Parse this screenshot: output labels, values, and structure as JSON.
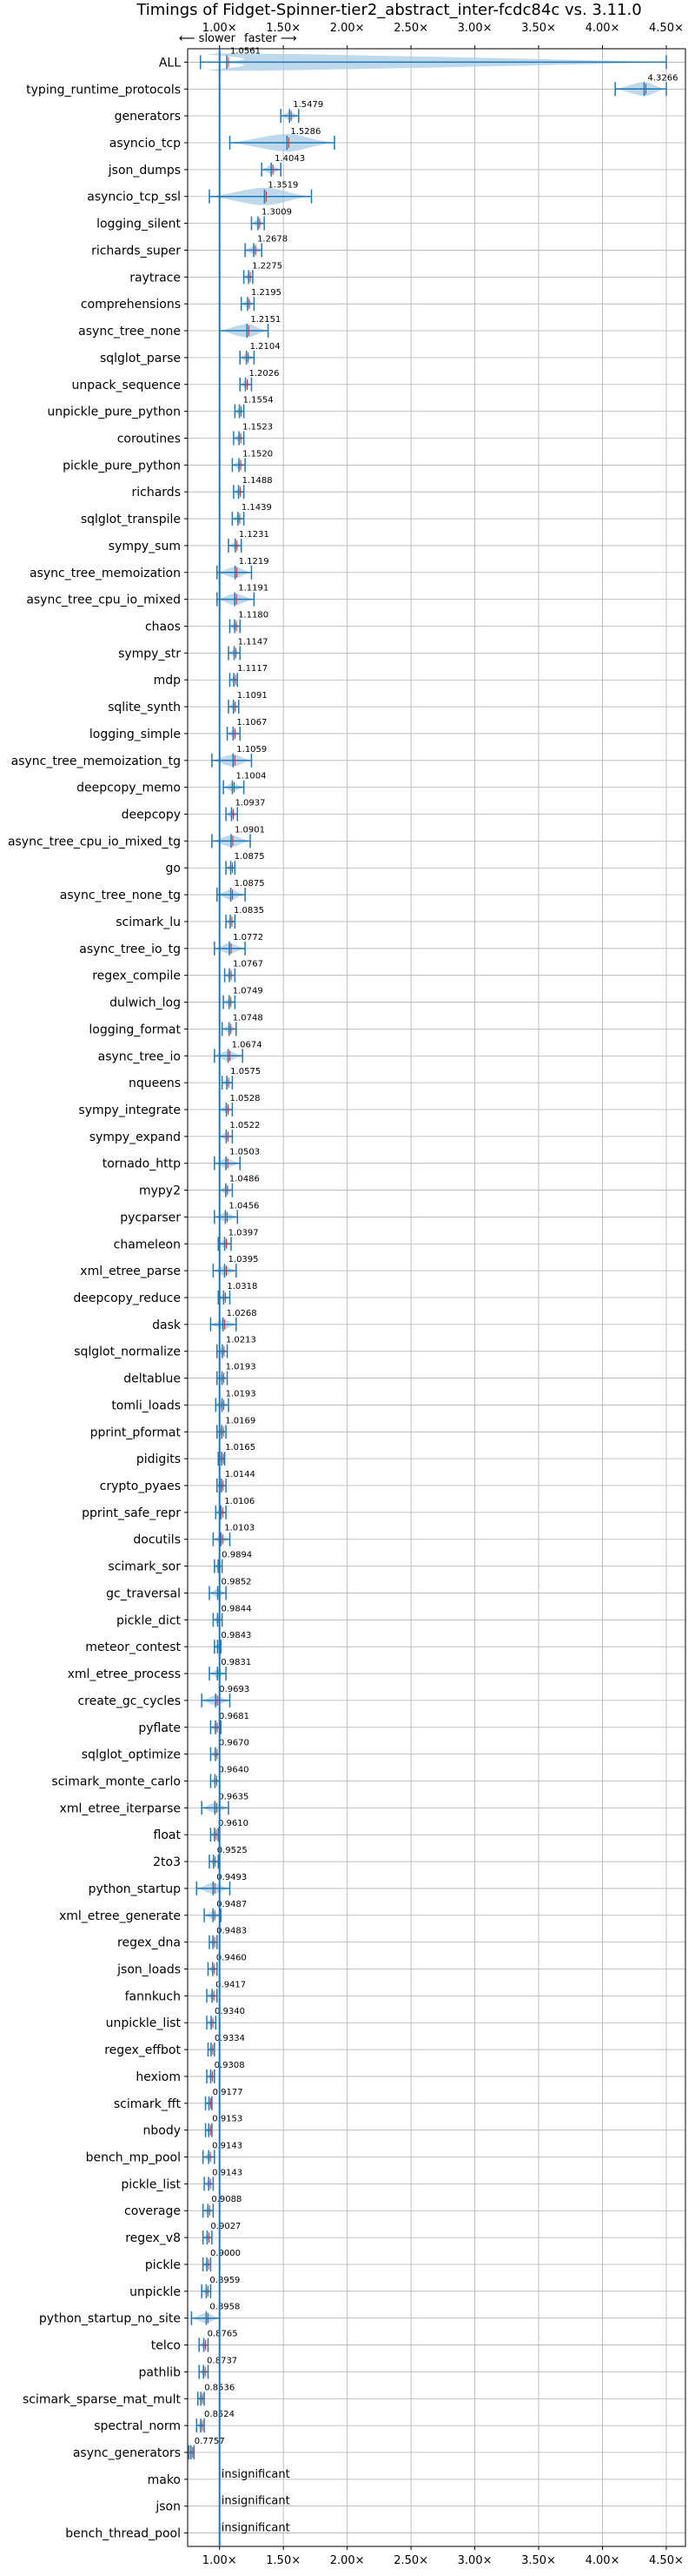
{
  "chart_data": {
    "type": "violin",
    "title": "Timings of Fidget-Spinner-tier2_abstract_inter-fcdc84c vs. 3.11.0",
    "slower_label": "⟵ slower",
    "faster_label": "faster ⟶",
    "insignificant_label": "insignificant",
    "xlim": [
      0.75,
      4.65
    ],
    "x_ticks": [
      1.0,
      1.5,
      2.0,
      2.5,
      3.0,
      3.5,
      4.0,
      4.5
    ],
    "x_tick_labels": [
      "1.00×",
      "1.50×",
      "2.00×",
      "2.50×",
      "3.00×",
      "3.50×",
      "4.00×",
      "4.50×"
    ],
    "reference_line": 1.0,
    "grid": true,
    "colors": {
      "violin": "#a8cbe6",
      "median": "#1f77b4",
      "mean": "#d62728",
      "reference": "#1f77b4"
    },
    "rows": [
      {
        "name": "ALL",
        "value": 1.0561,
        "low": 0.85,
        "high": 4.5
      },
      {
        "name": "typing_runtime_protocols",
        "value": 4.3266,
        "low": 4.1,
        "high": 4.5
      },
      {
        "name": "generators",
        "value": 1.5479,
        "low": 1.48,
        "high": 1.62
      },
      {
        "name": "asyncio_tcp",
        "value": 1.5286,
        "low": 1.08,
        "high": 1.9
      },
      {
        "name": "json_dumps",
        "value": 1.4043,
        "low": 1.33,
        "high": 1.48
      },
      {
        "name": "asyncio_tcp_ssl",
        "value": 1.3519,
        "low": 0.92,
        "high": 1.72
      },
      {
        "name": "logging_silent",
        "value": 1.3009,
        "low": 1.25,
        "high": 1.35
      },
      {
        "name": "richards_super",
        "value": 1.2678,
        "low": 1.2,
        "high": 1.33
      },
      {
        "name": "raytrace",
        "value": 1.2275,
        "low": 1.19,
        "high": 1.26
      },
      {
        "name": "comprehensions",
        "value": 1.2195,
        "low": 1.17,
        "high": 1.27
      },
      {
        "name": "async_tree_none",
        "value": 1.2151,
        "low": 1.0,
        "high": 1.38
      },
      {
        "name": "sqlglot_parse",
        "value": 1.2104,
        "low": 1.16,
        "high": 1.27
      },
      {
        "name": "unpack_sequence",
        "value": 1.2026,
        "low": 1.16,
        "high": 1.25
      },
      {
        "name": "unpickle_pure_python",
        "value": 1.1554,
        "low": 1.12,
        "high": 1.19
      },
      {
        "name": "coroutines",
        "value": 1.1523,
        "low": 1.11,
        "high": 1.19
      },
      {
        "name": "pickle_pure_python",
        "value": 1.152,
        "low": 1.1,
        "high": 1.2
      },
      {
        "name": "richards",
        "value": 1.1488,
        "low": 1.11,
        "high": 1.19
      },
      {
        "name": "sqlglot_transpile",
        "value": 1.1439,
        "low": 1.1,
        "high": 1.19
      },
      {
        "name": "sympy_sum",
        "value": 1.1231,
        "low": 1.07,
        "high": 1.17
      },
      {
        "name": "async_tree_memoization",
        "value": 1.1219,
        "low": 0.98,
        "high": 1.25
      },
      {
        "name": "async_tree_cpu_io_mixed",
        "value": 1.1191,
        "low": 0.98,
        "high": 1.27
      },
      {
        "name": "chaos",
        "value": 1.118,
        "low": 1.08,
        "high": 1.16
      },
      {
        "name": "sympy_str",
        "value": 1.1147,
        "low": 1.07,
        "high": 1.16
      },
      {
        "name": "mdp",
        "value": 1.1117,
        "low": 1.08,
        "high": 1.14
      },
      {
        "name": "sqlite_synth",
        "value": 1.1091,
        "low": 1.07,
        "high": 1.15
      },
      {
        "name": "logging_simple",
        "value": 1.1067,
        "low": 1.06,
        "high": 1.16
      },
      {
        "name": "async_tree_memoization_tg",
        "value": 1.1059,
        "low": 0.94,
        "high": 1.25
      },
      {
        "name": "deepcopy_memo",
        "value": 1.1004,
        "low": 1.03,
        "high": 1.19
      },
      {
        "name": "deepcopy",
        "value": 1.0937,
        "low": 1.05,
        "high": 1.14
      },
      {
        "name": "async_tree_cpu_io_mixed_tg",
        "value": 1.0901,
        "low": 0.94,
        "high": 1.24
      },
      {
        "name": "go",
        "value": 1.0875,
        "low": 1.05,
        "high": 1.12
      },
      {
        "name": "async_tree_none_tg",
        "value": 1.0875,
        "low": 0.98,
        "high": 1.2
      },
      {
        "name": "scimark_lu",
        "value": 1.0835,
        "low": 1.05,
        "high": 1.12
      },
      {
        "name": "async_tree_io_tg",
        "value": 1.0772,
        "low": 0.96,
        "high": 1.2
      },
      {
        "name": "regex_compile",
        "value": 1.0767,
        "low": 1.04,
        "high": 1.12
      },
      {
        "name": "dulwich_log",
        "value": 1.0749,
        "low": 1.03,
        "high": 1.12
      },
      {
        "name": "logging_format",
        "value": 1.0748,
        "low": 1.02,
        "high": 1.13
      },
      {
        "name": "async_tree_io",
        "value": 1.0674,
        "low": 0.96,
        "high": 1.18
      },
      {
        "name": "nqueens",
        "value": 1.0575,
        "low": 1.02,
        "high": 1.1
      },
      {
        "name": "sympy_integrate",
        "value": 1.0528,
        "low": 1.0,
        "high": 1.1
      },
      {
        "name": "sympy_expand",
        "value": 1.0522,
        "low": 1.0,
        "high": 1.1
      },
      {
        "name": "tornado_http",
        "value": 1.0503,
        "low": 0.96,
        "high": 1.16
      },
      {
        "name": "mypy2",
        "value": 1.0486,
        "low": 1.0,
        "high": 1.1
      },
      {
        "name": "pycparser",
        "value": 1.0456,
        "low": 0.96,
        "high": 1.14
      },
      {
        "name": "chameleon",
        "value": 1.0397,
        "low": 0.99,
        "high": 1.09
      },
      {
        "name": "xml_etree_parse",
        "value": 1.0395,
        "low": 0.95,
        "high": 1.13
      },
      {
        "name": "deepcopy_reduce",
        "value": 1.0318,
        "low": 0.99,
        "high": 1.08
      },
      {
        "name": "dask",
        "value": 1.0268,
        "low": 0.93,
        "high": 1.13
      },
      {
        "name": "sqlglot_normalize",
        "value": 1.0213,
        "low": 0.98,
        "high": 1.06
      },
      {
        "name": "deltablue",
        "value": 1.0193,
        "low": 0.98,
        "high": 1.06
      },
      {
        "name": "tomli_loads",
        "value": 1.0193,
        "low": 0.97,
        "high": 1.07
      },
      {
        "name": "pprint_pformat",
        "value": 1.0169,
        "low": 0.98,
        "high": 1.05
      },
      {
        "name": "pidigits",
        "value": 1.0165,
        "low": 0.99,
        "high": 1.04
      },
      {
        "name": "crypto_pyaes",
        "value": 1.0144,
        "low": 0.98,
        "high": 1.05
      },
      {
        "name": "pprint_safe_repr",
        "value": 1.0106,
        "low": 0.97,
        "high": 1.05
      },
      {
        "name": "docutils",
        "value": 1.0103,
        "low": 0.95,
        "high": 1.08
      },
      {
        "name": "scimark_sor",
        "value": 0.9894,
        "low": 0.96,
        "high": 1.02
      },
      {
        "name": "gc_traversal",
        "value": 0.9852,
        "low": 0.92,
        "high": 1.05
      },
      {
        "name": "pickle_dict",
        "value": 0.9844,
        "low": 0.95,
        "high": 1.02
      },
      {
        "name": "meteor_contest",
        "value": 0.9843,
        "low": 0.96,
        "high": 1.01
      },
      {
        "name": "xml_etree_process",
        "value": 0.9831,
        "low": 0.92,
        "high": 1.05
      },
      {
        "name": "create_gc_cycles",
        "value": 0.9693,
        "low": 0.86,
        "high": 1.08
      },
      {
        "name": "pyflate",
        "value": 0.9681,
        "low": 0.93,
        "high": 1.01
      },
      {
        "name": "sqlglot_optimize",
        "value": 0.967,
        "low": 0.93,
        "high": 1.0
      },
      {
        "name": "scimark_monte_carlo",
        "value": 0.964,
        "low": 0.93,
        "high": 1.0
      },
      {
        "name": "xml_etree_iterparse",
        "value": 0.9635,
        "low": 0.86,
        "high": 1.07
      },
      {
        "name": "float",
        "value": 0.961,
        "low": 0.93,
        "high": 0.99
      },
      {
        "name": "2to3",
        "value": 0.9525,
        "low": 0.92,
        "high": 0.99
      },
      {
        "name": "python_startup",
        "value": 0.9493,
        "low": 0.82,
        "high": 1.08
      },
      {
        "name": "xml_etree_generate",
        "value": 0.9487,
        "low": 0.88,
        "high": 1.01
      },
      {
        "name": "regex_dna",
        "value": 0.9483,
        "low": 0.92,
        "high": 0.98
      },
      {
        "name": "json_loads",
        "value": 0.946,
        "low": 0.91,
        "high": 0.98
      },
      {
        "name": "fannkuch",
        "value": 0.9417,
        "low": 0.9,
        "high": 0.98
      },
      {
        "name": "unpickle_list",
        "value": 0.934,
        "low": 0.9,
        "high": 0.97
      },
      {
        "name": "regex_effbot",
        "value": 0.9334,
        "low": 0.91,
        "high": 0.96
      },
      {
        "name": "hexiom",
        "value": 0.9308,
        "low": 0.9,
        "high": 0.96
      },
      {
        "name": "scimark_fft",
        "value": 0.9177,
        "low": 0.89,
        "high": 0.94
      },
      {
        "name": "nbody",
        "value": 0.9153,
        "low": 0.89,
        "high": 0.94
      },
      {
        "name": "bench_mp_pool",
        "value": 0.9143,
        "low": 0.87,
        "high": 0.96
      },
      {
        "name": "pickle_list",
        "value": 0.9143,
        "low": 0.88,
        "high": 0.95
      },
      {
        "name": "coverage",
        "value": 0.9088,
        "low": 0.87,
        "high": 0.95
      },
      {
        "name": "regex_v8",
        "value": 0.9027,
        "low": 0.87,
        "high": 0.94
      },
      {
        "name": "pickle",
        "value": 0.9,
        "low": 0.87,
        "high": 0.93
      },
      {
        "name": "unpickle",
        "value": 0.8959,
        "low": 0.86,
        "high": 0.93
      },
      {
        "name": "python_startup_no_site",
        "value": 0.8958,
        "low": 0.78,
        "high": 1.0
      },
      {
        "name": "telco",
        "value": 0.8765,
        "low": 0.84,
        "high": 0.91
      },
      {
        "name": "pathlib",
        "value": 0.8737,
        "low": 0.84,
        "high": 0.91
      },
      {
        "name": "scimark_sparse_mat_mult",
        "value": 0.8536,
        "low": 0.83,
        "high": 0.88
      },
      {
        "name": "spectral_norm",
        "value": 0.8524,
        "low": 0.82,
        "high": 0.88
      },
      {
        "name": "async_generators",
        "value": 0.7757,
        "low": 0.76,
        "high": 0.8
      },
      {
        "name": "mako",
        "insignificant": true
      },
      {
        "name": "json",
        "insignificant": true
      },
      {
        "name": "bench_thread_pool",
        "insignificant": true
      }
    ]
  }
}
